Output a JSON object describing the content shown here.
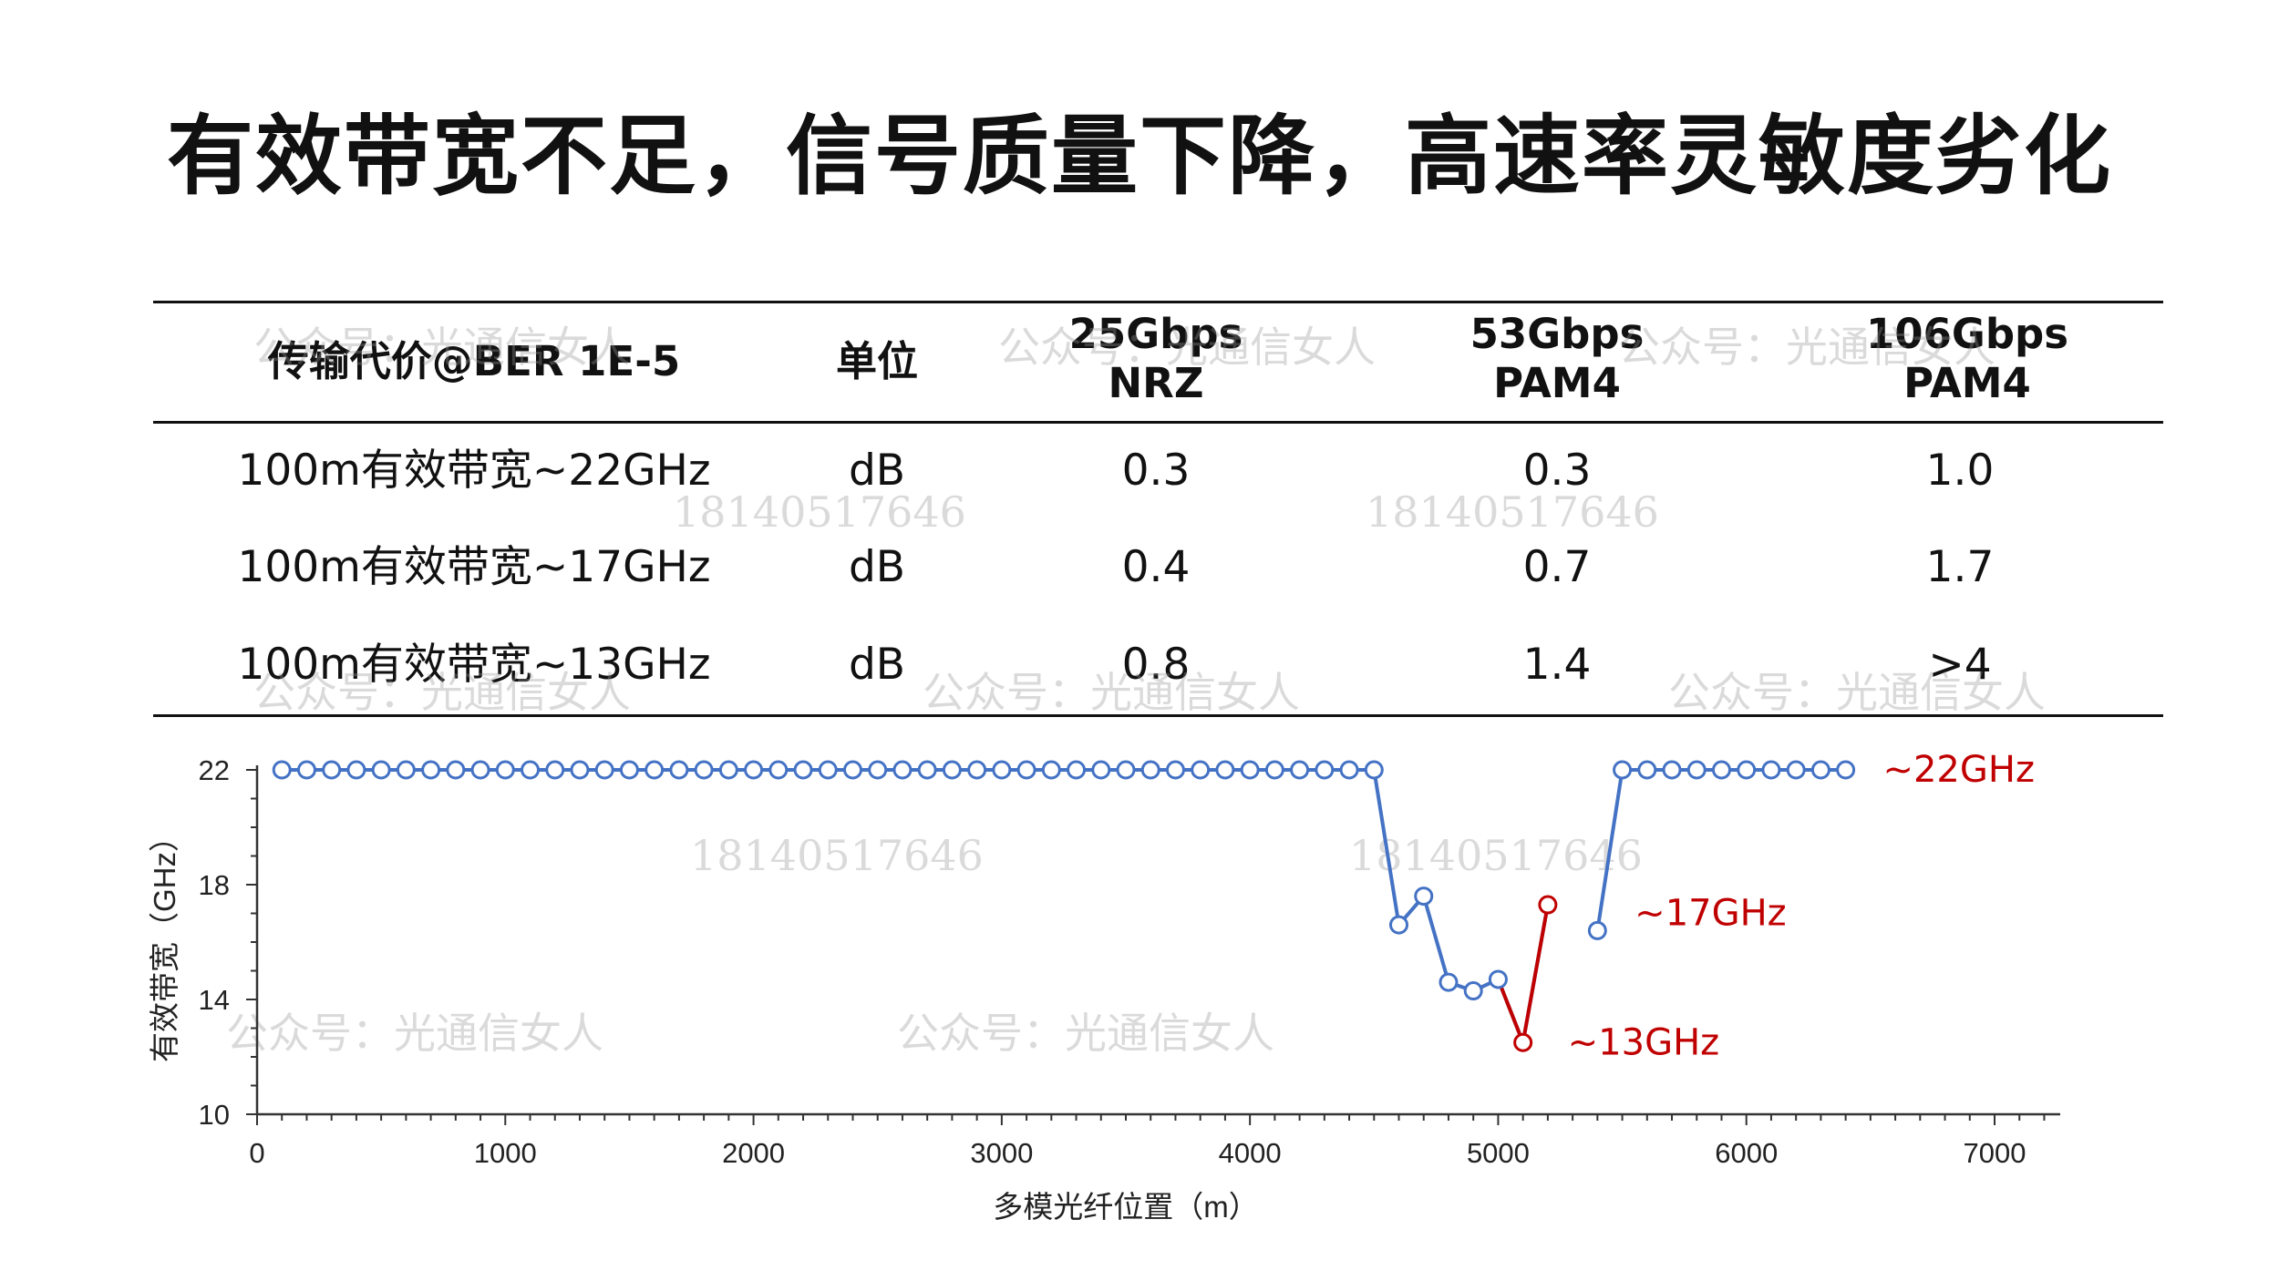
{
  "title": "有效带宽不足，信号质量下降，高速率灵敏度劣化",
  "table": {
    "headers": [
      [
        "传输代价@BER 1E-5"
      ],
      [
        "单位"
      ],
      [
        "25Gbps",
        "NRZ"
      ],
      [
        "53Gbps",
        "PAM4"
      ],
      [
        "106Gbps",
        "PAM4"
      ]
    ],
    "rows": [
      [
        "100m有效带宽~22GHz",
        "dB",
        "0.3",
        "0.3",
        "1.0"
      ],
      [
        "100m有效带宽~17GHz",
        "dB",
        "0.4",
        "0.7",
        "1.7"
      ],
      [
        "100m有效带宽~13GHz",
        "dB",
        "0.8",
        "1.4",
        ">4"
      ]
    ]
  },
  "watermarks": [
    "公众号：光通信女人",
    "公众号：光通信女人",
    "公众号：光通信女人",
    "18140517646",
    "18140517646",
    "公众号：光通信女人",
    "公众号：光通信女人",
    "18140517646",
    "18140517646",
    "公众号：光通信女人",
    "公众号：光通信女人",
    "公众号：光通信女人"
  ],
  "chart_data": {
    "type": "line",
    "xlabel": "多模光纤位置（m）",
    "ylabel": "有效带宽（GHz）",
    "xlim": [
      0,
      7000
    ],
    "ylim": [
      10,
      22
    ],
    "xticks": [
      "0",
      "1000",
      "2000",
      "3000",
      "4000",
      "5000",
      "6000",
      "7000"
    ],
    "yticks": [
      "10",
      "14",
      "18",
      "22"
    ],
    "grid": false,
    "colors": {
      "series": "#4472C4",
      "highlight": "#C00000"
    },
    "series": [
      {
        "x": [
          100,
          200,
          300,
          400,
          500,
          600,
          700,
          800,
          900,
          1000,
          1100,
          1200,
          1300,
          1400,
          1500,
          1600,
          1700,
          1800,
          1900,
          2000,
          2100,
          2200,
          2300,
          2400,
          2500,
          2600,
          2700,
          2800,
          2900,
          3000,
          3100,
          3200,
          3300,
          3400,
          3500,
          3600,
          3700,
          3800,
          3900,
          4000,
          4100,
          4200,
          4300,
          4400,
          4500,
          4600,
          4700,
          4800,
          4900,
          5000,
          5100,
          5200,
          5300,
          5400,
          5500,
          5600,
          5700,
          5800,
          5900,
          6000,
          6100,
          6200,
          6300,
          6400
        ],
        "y": [
          22,
          22,
          22,
          22,
          22,
          22,
          22,
          22,
          22,
          22,
          22,
          22,
          22,
          22,
          22,
          22,
          22,
          22,
          22,
          22,
          22,
          22,
          22,
          22,
          22,
          22,
          22,
          22,
          22,
          22,
          22,
          22,
          22,
          22,
          22,
          22,
          22,
          22,
          22,
          22,
          22,
          22,
          22,
          22,
          22,
          16.6,
          17.6,
          14.6,
          14.3,
          14.7,
          12.5,
          17.3,
          null,
          16.4,
          22,
          22,
          22,
          22,
          22,
          22,
          22,
          22,
          22,
          22
        ]
      }
    ],
    "highlight": {
      "x": [
        5000,
        5100,
        5200
      ],
      "y": [
        14.7,
        12.5,
        17.3
      ]
    },
    "annotations": [
      {
        "text": "~22GHz",
        "x": 6550,
        "y": 22,
        "color": "#C00000"
      },
      {
        "text": "~17GHz",
        "x": 5550,
        "y": 17.0,
        "color": "#C00000"
      },
      {
        "text": "~13GHz",
        "x": 5280,
        "y": 12.5,
        "color": "#C00000"
      }
    ]
  }
}
